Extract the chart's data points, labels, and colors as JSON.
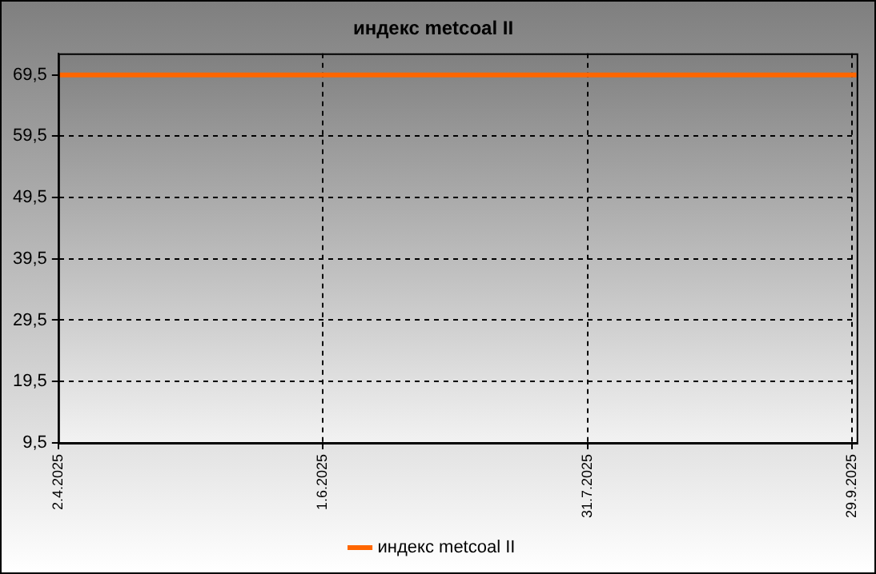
{
  "chart_data": {
    "type": "line",
    "title": "индекс metcoal II",
    "x": [
      "2025-04-02",
      "2025-09-30"
    ],
    "series": [
      {
        "name": "индекс metcoal II",
        "color": "#ff6600",
        "values": [
          69.5,
          69.5
        ]
      }
    ],
    "xlim": [
      "2025-04-02",
      "2025-09-30"
    ],
    "xticks": [
      {
        "value": "2025-04-02",
        "label": "2.4.2025"
      },
      {
        "value": "2025-06-01",
        "label": "1.6.2025"
      },
      {
        "value": "2025-07-31",
        "label": "31.7.2025"
      },
      {
        "value": "2025-09-29",
        "label": "29.9.2025"
      }
    ],
    "ylim": [
      9.5,
      73
    ],
    "yticks": [
      {
        "value": 9.5,
        "label": "9,5"
      },
      {
        "value": 19.5,
        "label": "19,5"
      },
      {
        "value": 29.5,
        "label": "29,5"
      },
      {
        "value": 39.5,
        "label": "39,5"
      },
      {
        "value": 49.5,
        "label": "49,5"
      },
      {
        "value": 59.5,
        "label": "59,5"
      },
      {
        "value": 69.5,
        "label": "69,5"
      }
    ],
    "grid": true,
    "legend": "bottom",
    "marker": "none",
    "line_style": "solid"
  }
}
